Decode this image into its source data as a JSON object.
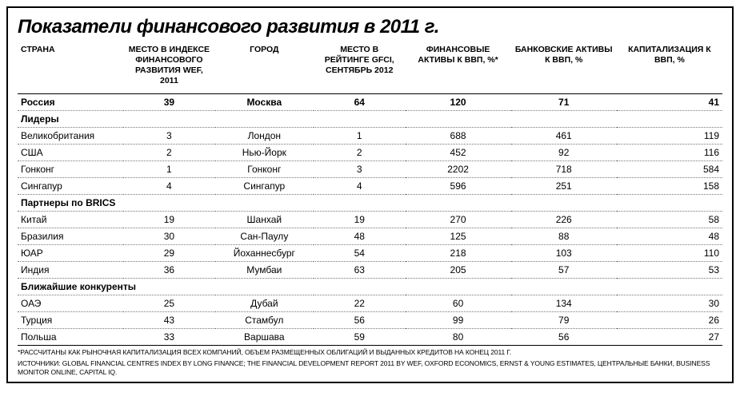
{
  "title": "Показатели финансового развития в 2011 г.",
  "columns": [
    "СТРАНА",
    "МЕСТО В ИНДЕКСЕ ФИНАНСОВОГО РАЗВИТИЯ WEF, 2011",
    "ГОРОД",
    "МЕСТО В РЕЙТИНГЕ GFCI, СЕНТЯБРЬ 2012",
    "ФИНАНСОВЫЕ АКТИВЫ К ВВП, %*",
    "БАНКОВСКИЕ АКТИВЫ К ВВП, %",
    "КАПИТАЛИЗАЦИЯ К ВВП, %"
  ],
  "groups": [
    {
      "header": null,
      "rows": [
        {
          "bold": true,
          "cells": [
            "Россия",
            "39",
            "Москва",
            "64",
            "120",
            "71",
            "41"
          ]
        }
      ]
    },
    {
      "header": "Лидеры",
      "rows": [
        {
          "cells": [
            "Великобритания",
            "3",
            "Лондон",
            "1",
            "688",
            "461",
            "119"
          ]
        },
        {
          "cells": [
            "США",
            "2",
            "Нью-Йорк",
            "2",
            "452",
            "92",
            "116"
          ]
        },
        {
          "cells": [
            "Гонконг",
            "1",
            "Гонконг",
            "3",
            "2202",
            "718",
            "584"
          ]
        },
        {
          "cells": [
            "Сингапур",
            "4",
            "Сингапур",
            "4",
            "596",
            "251",
            "158"
          ]
        }
      ]
    },
    {
      "header": "Партнеры по BRICS",
      "rows": [
        {
          "cells": [
            "Китай",
            "19",
            "Шанхай",
            "19",
            "270",
            "226",
            "58"
          ]
        },
        {
          "cells": [
            "Бразилия",
            "30",
            "Сан-Паулу",
            "48",
            "125",
            "88",
            "48"
          ]
        },
        {
          "cells": [
            "ЮАР",
            "29",
            "Йоханнесбург",
            "54",
            "218",
            "103",
            "110"
          ]
        },
        {
          "cells": [
            "Индия",
            "36",
            "Мумбаи",
            "63",
            "205",
            "57",
            "53"
          ]
        }
      ]
    },
    {
      "header": "Ближайшие конкуренты",
      "rows": [
        {
          "cells": [
            "ОАЭ",
            "25",
            "Дубай",
            "22",
            "60",
            "134",
            "30"
          ]
        },
        {
          "cells": [
            "Турция",
            "43",
            "Стамбул",
            "56",
            "99",
            "79",
            "26"
          ]
        },
        {
          "cells": [
            "Польша",
            "33",
            "Варшава",
            "59",
            "80",
            "56",
            "27"
          ]
        }
      ]
    }
  ],
  "footnote1": "*РАССЧИТАНЫ КАК РЫНОЧНАЯ КАПИТАЛИЗАЦИЯ ВСЕХ КОМПАНИЙ, ОБЪЕМ РАЗМЕЩЕННЫХ ОБЛИГАЦИЙ И ВЫДАННЫХ КРЕДИТОВ НА КОНЕЦ 2011 Г.",
  "footnote2": "ИСТОЧНИКИ: GLOBAL FINANCIAL CENTRES INDEX BY LONG FINANCE; THE FINANCIAL DEVELOPMENT REPORT 2011 BY WEF, OXFORD ECONOMICS, ERNST & YOUNG ESTIMATES, ЦЕНТРАЛЬНЫЕ БАНКИ, BUSINESS MONITOR ONLINE, CAPITAL IQ."
}
